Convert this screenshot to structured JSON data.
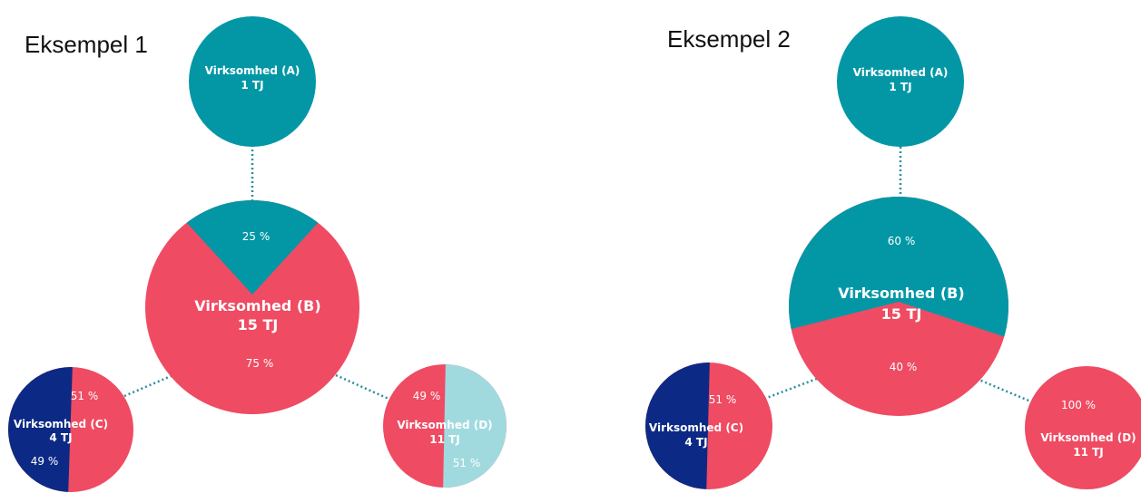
{
  "colors": {
    "teal": "#0397a6",
    "red": "#ef4b63",
    "navy": "#0c2a85",
    "light_teal": "#a0dadf",
    "connector": "#2a8f9c",
    "white": "#ffffff"
  },
  "examples": [
    {
      "title": "Eksempel 1",
      "nodes": {
        "a": {
          "name": "Virksomhed (A)",
          "value": "1 TJ"
        },
        "b": {
          "name": "Virksomhed (B)",
          "value": "15 TJ",
          "share_from_a": "25 %",
          "share_other": "75 %"
        },
        "c": {
          "name": "Virksomhed (C)",
          "value": "4 TJ",
          "share_from_b": "51 %",
          "share_other": "49 %"
        },
        "d": {
          "name": "Virksomhed (D)",
          "value": "11 TJ",
          "share_from_b": "49 %",
          "share_other": "51 %"
        }
      }
    },
    {
      "title": "Eksempel 2",
      "nodes": {
        "a": {
          "name": "Virksomhed (A)",
          "value": "1 TJ"
        },
        "b": {
          "name": "Virksomhed (B)",
          "value": "15 TJ",
          "share_from_a": "60 %",
          "share_other": "40 %"
        },
        "c": {
          "name": "Virksomhed (C)",
          "value": "4 TJ",
          "share_from_b": "51 %"
        },
        "d": {
          "name": "Virksomhed (D)",
          "value": "11 TJ",
          "share_from_b": "100 %"
        }
      }
    }
  ]
}
